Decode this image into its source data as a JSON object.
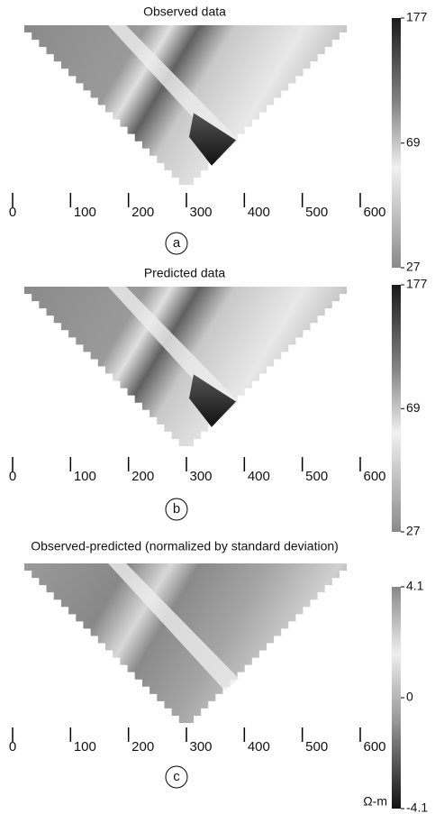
{
  "panels": [
    {
      "title": "Observed data",
      "label": "a",
      "xticks": [
        0,
        100,
        200,
        300,
        400,
        500,
        600
      ],
      "colorbar": {
        "lim": [
          27,
          177
        ],
        "ticks": [
          177,
          69,
          27
        ],
        "scale": "log"
      }
    },
    {
      "title": "Predicted data",
      "label": "b",
      "xticks": [
        0,
        100,
        200,
        300,
        400,
        500,
        600
      ],
      "colorbar": {
        "lim": [
          27,
          177
        ],
        "ticks": [
          177,
          69,
          27
        ],
        "scale": "log"
      }
    },
    {
      "title": "Observed-predicted (normalized by standard deviation)",
      "label": "c",
      "xticks": [
        0,
        100,
        200,
        300,
        400,
        500,
        600
      ],
      "colorbar": {
        "lim": [
          -4.1,
          4.1
        ],
        "ticks": [
          4.1,
          0,
          -4.1
        ],
        "scale": "linear"
      }
    }
  ],
  "unit": "Ω-m"
}
